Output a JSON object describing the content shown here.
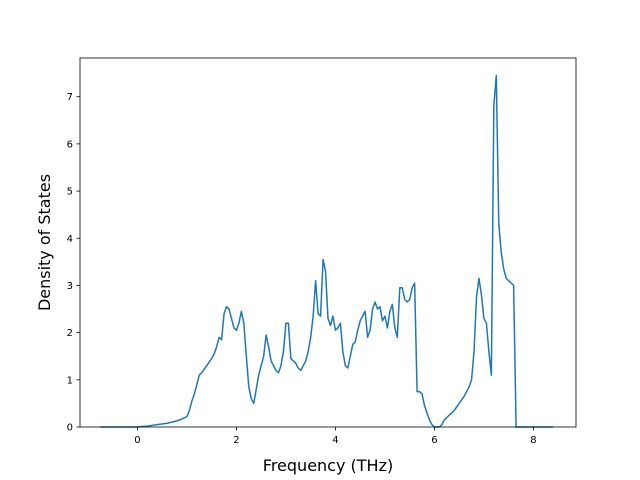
{
  "chart_data": {
    "type": "line",
    "xlabel": "Frequency (THz)",
    "ylabel": "Density of States",
    "xlim": [
      -1.16,
      8.86
    ],
    "ylim": [
      0,
      7.82
    ],
    "xticks": [
      0,
      2,
      4,
      6,
      8
    ],
    "yticks": [
      0,
      1,
      2,
      3,
      4,
      5,
      6,
      7
    ],
    "grid": false,
    "line_color": "#1f77b4",
    "series": [
      {
        "x": [
          -0.75,
          0.0,
          0.2,
          0.4,
          0.6,
          0.8,
          0.9,
          1.0,
          1.05,
          1.1,
          1.15,
          1.2,
          1.25,
          1.3,
          1.4,
          1.5,
          1.55,
          1.6,
          1.65,
          1.7,
          1.75,
          1.8,
          1.85,
          1.9,
          1.95,
          2.0,
          2.05,
          2.1,
          2.15,
          2.2,
          2.25,
          2.3,
          2.35,
          2.4,
          2.45,
          2.5,
          2.55,
          2.6,
          2.65,
          2.7,
          2.75,
          2.8,
          2.85,
          2.9,
          2.95,
          3.0,
          3.05,
          3.1,
          3.15,
          3.2,
          3.25,
          3.3,
          3.35,
          3.4,
          3.45,
          3.5,
          3.55,
          3.6,
          3.65,
          3.7,
          3.75,
          3.8,
          3.85,
          3.9,
          3.95,
          4.0,
          4.05,
          4.1,
          4.15,
          4.2,
          4.25,
          4.3,
          4.35,
          4.4,
          4.45,
          4.5,
          4.55,
          4.6,
          4.65,
          4.7,
          4.75,
          4.8,
          4.85,
          4.9,
          4.95,
          5.0,
          5.05,
          5.1,
          5.15,
          5.2,
          5.25,
          5.3,
          5.35,
          5.4,
          5.45,
          5.5,
          5.55,
          5.6,
          5.65,
          5.7,
          5.75,
          5.8,
          5.85,
          5.9,
          5.95,
          6.0,
          6.05,
          6.1,
          6.15,
          6.2,
          6.3,
          6.4,
          6.5,
          6.6,
          6.7,
          6.75,
          6.8,
          6.85,
          6.9,
          6.95,
          7.0,
          7.05,
          7.1,
          7.15,
          7.2,
          7.25,
          7.3,
          7.35,
          7.4,
          7.45,
          7.5,
          7.55,
          7.6,
          7.65,
          7.7,
          8.0,
          8.4
        ],
        "y": [
          0,
          0,
          0.02,
          0.05,
          0.08,
          0.13,
          0.17,
          0.22,
          0.35,
          0.55,
          0.7,
          0.9,
          1.1,
          1.15,
          1.3,
          1.45,
          1.55,
          1.7,
          1.9,
          1.85,
          2.4,
          2.55,
          2.5,
          2.3,
          2.1,
          2.05,
          2.2,
          2.45,
          2.2,
          1.5,
          0.85,
          0.6,
          0.5,
          0.8,
          1.1,
          1.3,
          1.5,
          1.95,
          1.7,
          1.4,
          1.3,
          1.2,
          1.15,
          1.3,
          1.6,
          2.2,
          2.2,
          1.45,
          1.4,
          1.35,
          1.25,
          1.2,
          1.3,
          1.4,
          1.6,
          1.9,
          2.35,
          3.1,
          2.4,
          2.35,
          3.55,
          3.3,
          2.3,
          2.15,
          2.35,
          2.05,
          2.1,
          2.2,
          1.6,
          1.3,
          1.25,
          1.5,
          1.75,
          1.8,
          2.05,
          2.25,
          2.35,
          2.45,
          1.9,
          2.05,
          2.5,
          2.65,
          2.5,
          2.55,
          2.25,
          2.35,
          2.1,
          2.45,
          2.6,
          2.1,
          1.9,
          2.95,
          2.95,
          2.7,
          2.65,
          2.7,
          2.95,
          3.05,
          0.75,
          0.75,
          0.7,
          0.45,
          0.3,
          0.15,
          0.05,
          0,
          0,
          0,
          0.05,
          0.15,
          0.25,
          0.35,
          0.5,
          0.65,
          0.85,
          1.0,
          1.6,
          2.75,
          3.15,
          2.8,
          2.3,
          2.2,
          1.6,
          1.1,
          6.8,
          7.45,
          4.3,
          3.7,
          3.35,
          3.15,
          3.1,
          3.05,
          3.0,
          0,
          0,
          0,
          0
        ]
      }
    ]
  }
}
